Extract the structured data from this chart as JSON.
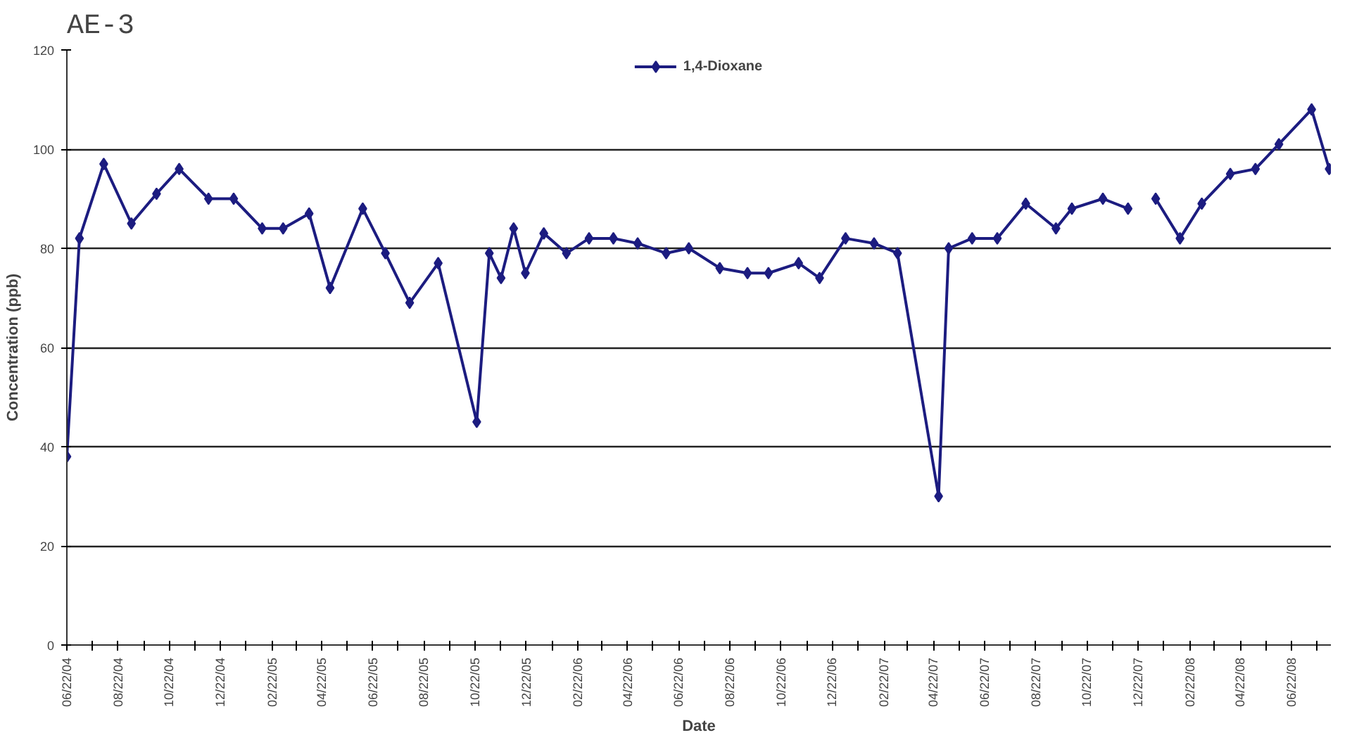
{
  "chart_data": {
    "type": "line",
    "title": "AE-3",
    "xlabel": "Date",
    "ylabel": "Concentration (ppb)",
    "x": [
      "2004-06-22",
      "2004-07-07",
      "2004-08-05",
      "2004-09-07",
      "2004-10-07",
      "2004-11-03",
      "2004-12-08",
      "2005-01-07",
      "2005-02-10",
      "2005-03-07",
      "2005-04-07",
      "2005-05-02",
      "2005-06-10",
      "2005-07-07",
      "2005-08-05",
      "2005-09-08",
      "2005-10-24",
      "2005-11-08",
      "2005-11-22",
      "2005-12-07",
      "2005-12-21",
      "2006-01-12",
      "2006-02-08",
      "2006-03-07",
      "2006-04-05",
      "2006-05-04",
      "2006-06-07",
      "2006-07-04",
      "2006-08-10",
      "2006-09-12",
      "2006-10-07",
      "2006-11-12",
      "2006-12-07",
      "2007-01-07",
      "2007-02-10",
      "2007-03-10",
      "2007-04-28",
      "2007-05-10",
      "2007-06-07",
      "2007-07-07",
      "2007-08-10",
      "2007-09-15",
      "2007-10-04",
      "2007-11-10",
      "2007-12-10",
      "2007-12-26",
      "2008-01-12",
      "2008-02-10",
      "2008-03-07",
      "2008-04-10",
      "2008-05-10",
      "2008-06-07",
      "2008-07-16",
      "2008-08-06"
    ],
    "series": [
      {
        "name": "1,4-Dioxane",
        "color": "#1c1c80",
        "values": [
          38,
          82,
          97,
          85,
          91,
          96,
          90,
          90,
          84,
          84,
          87,
          72,
          88,
          79,
          69,
          77,
          45,
          79,
          74,
          84,
          75,
          83,
          79,
          82,
          82,
          81,
          79,
          80,
          76,
          75,
          75,
          77,
          74,
          82,
          81,
          79,
          30,
          80,
          82,
          82,
          89,
          84,
          88,
          90,
          88,
          null,
          90,
          82,
          89,
          95,
          96,
          101,
          108,
          96
        ]
      }
    ],
    "xlim": [
      "2004-06-22",
      "2008-08-08"
    ],
    "xticks": [
      {
        "value": "2004-06-22",
        "label": "06/22/04"
      },
      {
        "value": "2004-07-22",
        "label": null
      },
      {
        "value": "2004-08-22",
        "label": "08/22/04"
      },
      {
        "value": "2004-09-22",
        "label": null
      },
      {
        "value": "2004-10-22",
        "label": "10/22/04"
      },
      {
        "value": "2004-11-22",
        "label": null
      },
      {
        "value": "2004-12-22",
        "label": "12/22/04"
      },
      {
        "value": "2005-01-22",
        "label": null
      },
      {
        "value": "2005-02-22",
        "label": "02/22/05"
      },
      {
        "value": "2005-03-22",
        "label": null
      },
      {
        "value": "2005-04-22",
        "label": "04/22/05"
      },
      {
        "value": "2005-05-22",
        "label": null
      },
      {
        "value": "2005-06-22",
        "label": "06/22/05"
      },
      {
        "value": "2005-07-22",
        "label": null
      },
      {
        "value": "2005-08-22",
        "label": "08/22/05"
      },
      {
        "value": "2005-09-22",
        "label": null
      },
      {
        "value": "2005-10-22",
        "label": "10/22/05"
      },
      {
        "value": "2005-11-22",
        "label": null
      },
      {
        "value": "2005-12-22",
        "label": "12/22/05"
      },
      {
        "value": "2006-01-22",
        "label": null
      },
      {
        "value": "2006-02-22",
        "label": "02/22/06"
      },
      {
        "value": "2006-03-22",
        "label": null
      },
      {
        "value": "2006-04-22",
        "label": "04/22/06"
      },
      {
        "value": "2006-05-22",
        "label": null
      },
      {
        "value": "2006-06-22",
        "label": "06/22/06"
      },
      {
        "value": "2006-07-22",
        "label": null
      },
      {
        "value": "2006-08-22",
        "label": "08/22/06"
      },
      {
        "value": "2006-09-22",
        "label": null
      },
      {
        "value": "2006-10-22",
        "label": "10/22/06"
      },
      {
        "value": "2006-11-22",
        "label": null
      },
      {
        "value": "2006-12-22",
        "label": "12/22/06"
      },
      {
        "value": "2007-01-22",
        "label": null
      },
      {
        "value": "2007-02-22",
        "label": "02/22/07"
      },
      {
        "value": "2007-03-22",
        "label": null
      },
      {
        "value": "2007-04-22",
        "label": "04/22/07"
      },
      {
        "value": "2007-05-22",
        "label": null
      },
      {
        "value": "2007-06-22",
        "label": "06/22/07"
      },
      {
        "value": "2007-07-22",
        "label": null
      },
      {
        "value": "2007-08-22",
        "label": "08/22/07"
      },
      {
        "value": "2007-09-22",
        "label": null
      },
      {
        "value": "2007-10-22",
        "label": "10/22/07"
      },
      {
        "value": "2007-11-22",
        "label": null
      },
      {
        "value": "2007-12-22",
        "label": "12/22/07"
      },
      {
        "value": "2008-01-22",
        "label": null
      },
      {
        "value": "2008-02-22",
        "label": "02/22/08"
      },
      {
        "value": "2008-03-22",
        "label": null
      },
      {
        "value": "2008-04-22",
        "label": "04/22/08"
      },
      {
        "value": "2008-05-22",
        "label": null
      },
      {
        "value": "2008-06-22",
        "label": "06/22/08"
      },
      {
        "value": "2008-07-22",
        "label": null
      }
    ],
    "ylim": [
      0,
      120
    ],
    "yticks": [
      0,
      20,
      40,
      60,
      80,
      100,
      120
    ],
    "grid": "y",
    "legend": "top",
    "marker": "diamond",
    "line_style": "solid"
  }
}
